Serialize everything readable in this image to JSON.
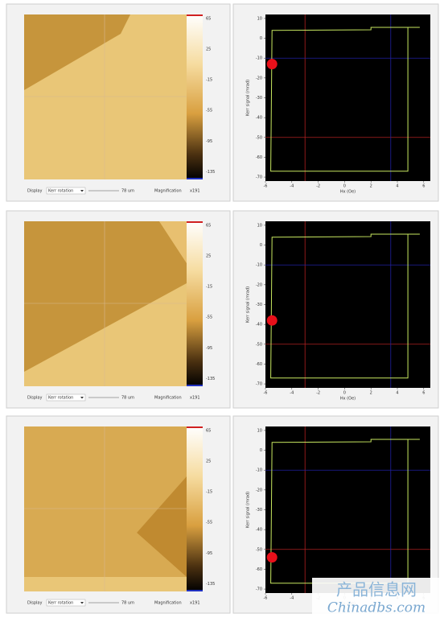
{
  "panels": [
    {
      "display_label": "Display",
      "display_value": "Kerr rotation",
      "scale": "78 um",
      "magnification_label": "Magnification",
      "magnification": "x191",
      "colorbar": {
        "lim": [
          -145,
          70
        ],
        "ticks": [
          65,
          25,
          -15,
          -55,
          -95,
          -135
        ]
      },
      "chart": {
        "type": "line",
        "ylabel": "Kerr signal (mrad)",
        "xlabel": "Hx (Oe)",
        "xlim": [
          -6,
          6.5
        ],
        "ylim": [
          -72,
          12
        ],
        "xticks": [
          -6,
          -4,
          -2,
          0,
          2,
          4,
          6
        ],
        "yticks": [
          10,
          0,
          -10,
          -20,
          -30,
          -40,
          -50,
          -60,
          -70
        ],
        "loop": {
          "color": "#c8e860",
          "x": [
            5.7,
            2,
            2,
            -5.5,
            -5.6,
            4.8,
            4.8,
            5.7
          ],
          "y": [
            5.5,
            5.5,
            4.3,
            4,
            -67,
            -67,
            5.5,
            5.5
          ]
        },
        "cursor_red": {
          "color": "#b02020",
          "x": -3,
          "y": -50
        },
        "cursor_blue": {
          "color": "#2020a0",
          "x": 3.5,
          "y": -10
        },
        "marker": {
          "color": "#e8101a",
          "x": -5.5,
          "y": -13
        }
      }
    },
    {
      "display_label": "Display",
      "display_value": "Kerr rotation",
      "scale": "78 um",
      "magnification_label": "Magnification",
      "magnification": "x191",
      "colorbar": {
        "lim": [
          -145,
          70
        ],
        "ticks": [
          65,
          25,
          -15,
          -55,
          -95,
          -135
        ]
      },
      "chart": {
        "type": "line",
        "ylabel": "Kerr signal (mrad)",
        "xlabel": "Hx (Oe)",
        "xlim": [
          -6,
          6.5
        ],
        "ylim": [
          -72,
          12
        ],
        "xticks": [
          -6,
          -4,
          -2,
          0,
          2,
          4,
          6
        ],
        "yticks": [
          10,
          0,
          -10,
          -20,
          -30,
          -40,
          -50,
          -60,
          -70
        ],
        "loop": {
          "color": "#c8e860",
          "x": [
            5.7,
            2,
            2,
            -5.5,
            -5.6,
            4.8,
            4.8,
            5.7
          ],
          "y": [
            5.5,
            5.5,
            4.3,
            4,
            -67,
            -67,
            5.5,
            5.5
          ]
        },
        "cursor_red": {
          "color": "#b02020",
          "x": -3,
          "y": -50
        },
        "cursor_blue": {
          "color": "#2020a0",
          "x": 3.5,
          "y": -10
        },
        "marker": {
          "color": "#e8101a",
          "x": -5.5,
          "y": -38
        }
      }
    },
    {
      "display_label": "Display",
      "display_value": "Kerr rotation",
      "scale": "78 um",
      "magnification_label": "Magnification",
      "magnification": "x191",
      "colorbar": {
        "lim": [
          -145,
          70
        ],
        "ticks": [
          65,
          25,
          -15,
          -55,
          -95,
          -135
        ]
      },
      "chart": {
        "type": "line",
        "ylabel": "Kerr signal (mrad)",
        "xlabel": "Hx (Oe)",
        "xlim": [
          -6,
          6.5
        ],
        "ylim": [
          -72,
          12
        ],
        "xticks": [
          -6,
          -4,
          -2,
          0,
          2,
          4,
          6
        ],
        "yticks": [
          10,
          0,
          -10,
          -20,
          -30,
          -40,
          -50,
          -60,
          -70
        ],
        "loop": {
          "color": "#c8e860",
          "x": [
            5.7,
            2,
            2,
            -5.5,
            -5.6,
            4.8,
            4.8,
            5.7
          ],
          "y": [
            5.5,
            5.5,
            4.3,
            4,
            -67,
            -67,
            5.5,
            5.5
          ]
        },
        "cursor_red": {
          "color": "#b02020",
          "x": -3,
          "y": -50
        },
        "cursor_blue": {
          "color": "#2020a0",
          "x": 3.5,
          "y": -10
        },
        "marker": {
          "color": "#e8101a",
          "x": -5.5,
          "y": -54
        }
      }
    }
  ],
  "watermark": {
    "cn": "产品信息网",
    "en": "Chinadbs.com"
  }
}
